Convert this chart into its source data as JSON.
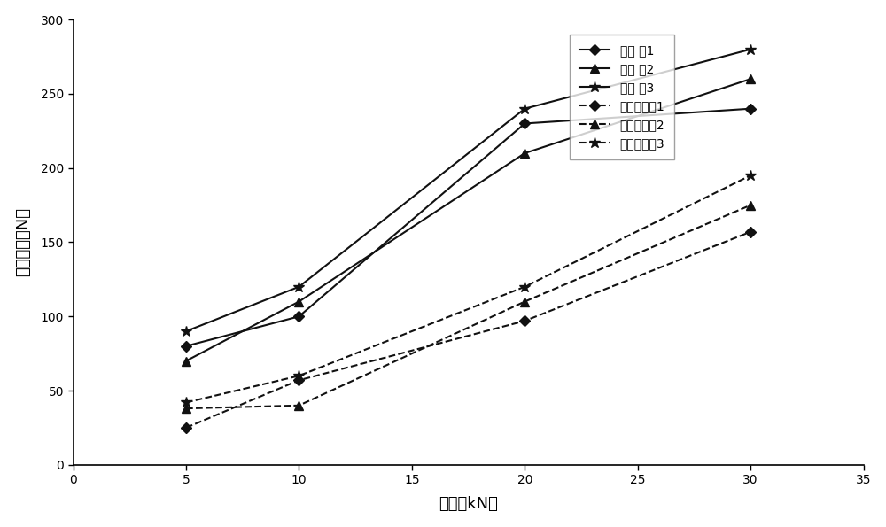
{
  "x": [
    5,
    10,
    20,
    30
  ],
  "series": [
    {
      "label": "实施 例1",
      "values": [
        80,
        100,
        230,
        240
      ],
      "linestyle": "-",
      "marker": "D",
      "color": "#111111",
      "dashed": false,
      "markersize": 6
    },
    {
      "label": "实施 例2",
      "values": [
        70,
        110,
        210,
        260
      ],
      "linestyle": "-",
      "marker": "^",
      "color": "#111111",
      "dashed": false,
      "markersize": 7
    },
    {
      "label": "实施 例3",
      "values": [
        90,
        120,
        240,
        280
      ],
      "linestyle": "-",
      "marker": "*",
      "color": "#111111",
      "dashed": false,
      "markersize": 9
    },
    {
      "label": "对比实施例1",
      "values": [
        25,
        57,
        97,
        157
      ],
      "linestyle": "--",
      "marker": "D",
      "color": "#111111",
      "dashed": true,
      "markersize": 6
    },
    {
      "label": "对比实施例2",
      "values": [
        38,
        40,
        110,
        175
      ],
      "linestyle": "--",
      "marker": "^",
      "color": "#111111",
      "dashed": true,
      "markersize": 7
    },
    {
      "label": "对比实施例3",
      "values": [
        42,
        60,
        120,
        195
      ],
      "linestyle": "--",
      "marker": "*",
      "color": "#111111",
      "dashed": true,
      "markersize": 9
    }
  ],
  "xlabel": "压力（kN）",
  "ylabel": "片剂硬度（N）",
  "xlim": [
    0,
    35
  ],
  "ylim": [
    0,
    300
  ],
  "xticks": [
    0,
    5,
    10,
    15,
    20,
    25,
    30,
    35
  ],
  "yticks": [
    0,
    50,
    100,
    150,
    200,
    250,
    300
  ],
  "background_color": "#ffffff",
  "figure_background": "#ffffff"
}
